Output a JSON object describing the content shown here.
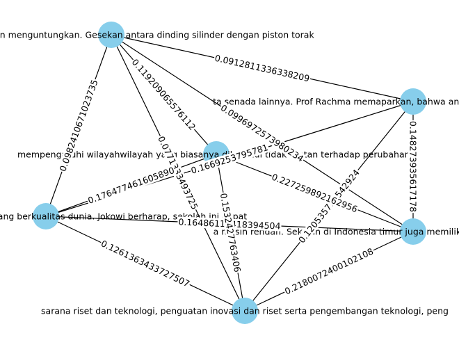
{
  "graph": {
    "node_color": "#87ceeb",
    "edge_color": "#000000",
    "nodes": [
      {
        "id": "n1",
        "label": "at merugikan ataupun menguntungkan. Gesekan antara dinding silinder dengan piston torak"
      },
      {
        "id": "n2",
        "label": "ta senada lainnya. Prof Rachma memaparkan, bahwa anak yang suka dikambinghitamkan s"
      },
      {
        "id": "n3",
        "label": "mempengaruhi wilayahwilayah yang biasanya diketahui tidak rentan terhadap perubahan i"
      },
      {
        "id": "n4",
        "label": "pendidikan bertaraf internasional yang berkualitas dunia. Jokowi berharap, sekolah ini dapat"
      },
      {
        "id": "n5",
        "label": "a masih rendah. Sekolah di Indonesia timur juga memiliki kualitas yang buruk dibanding wil"
      },
      {
        "id": "n6",
        "label": "sarana riset dan teknologi, penguatan inovasi dan riset serta pengembangan teknologi, peng"
      }
    ],
    "edges": [
      {
        "source": "n1",
        "target": "n2",
        "label": "0.0912811336338209"
      },
      {
        "source": "n1",
        "target": "n4",
        "label": "0.0982410671023735"
      },
      {
        "source": "n1",
        "target": "n3",
        "label": "0.119209065576112"
      },
      {
        "source": "n1",
        "target": "n6",
        "label": "0.0771333493725"
      },
      {
        "source": "n1",
        "target": "n5",
        "label": "0.0996972573980234"
      },
      {
        "source": "n2",
        "target": "n5",
        "label": "0.148273935617178"
      },
      {
        "source": "n2",
        "target": "n4",
        "label": "0.1669253795781"
      },
      {
        "source": "n2",
        "target": "n6",
        "label": "0.120535712542924"
      },
      {
        "source": "n4",
        "target": "n3",
        "label": "0.176477461605890"
      },
      {
        "source": "n4",
        "target": "n5",
        "label": "0.16486115418394504"
      },
      {
        "source": "n4",
        "target": "n6",
        "label": "0.1261363433727507"
      },
      {
        "source": "n3",
        "target": "n6",
        "label": "0.1532427763406"
      },
      {
        "source": "n3",
        "target": "n5",
        "label": "0.227259892162956"
      },
      {
        "source": "n5",
        "target": "n6",
        "label": "0.2180072400102108"
      }
    ]
  }
}
